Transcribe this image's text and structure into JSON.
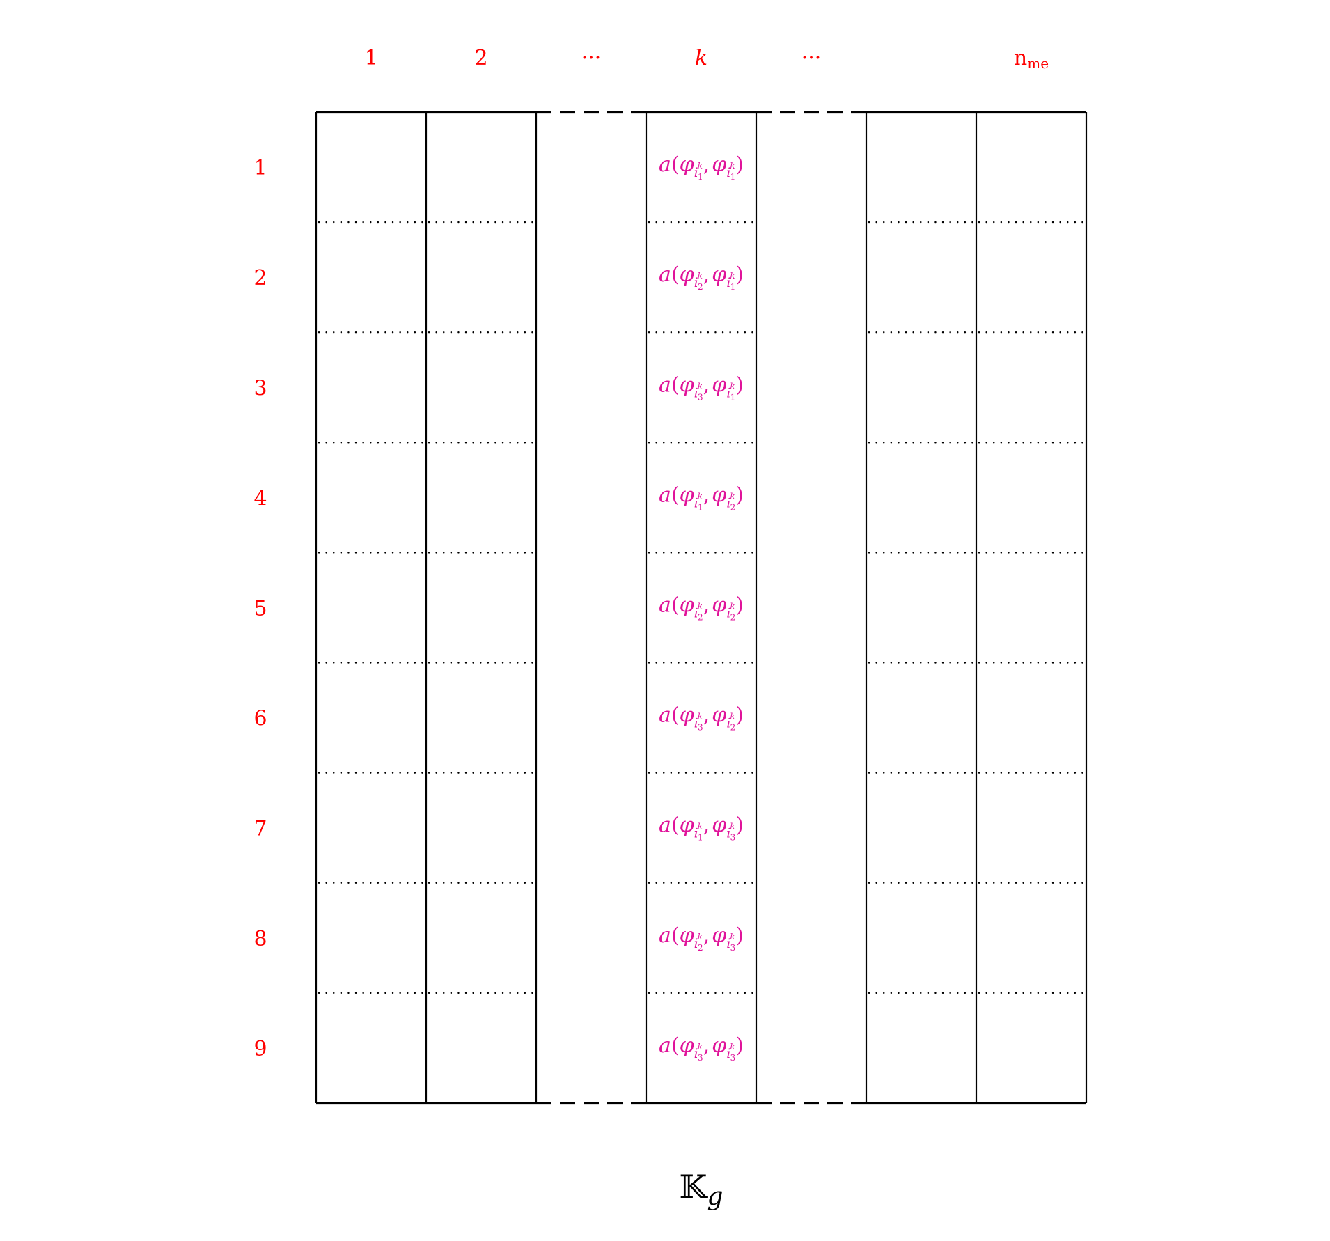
{
  "colors": {
    "label": "#ff0000",
    "entry": "#e0139a",
    "line": "#000000"
  },
  "column_headers": [
    {
      "text": "1",
      "italic": false
    },
    {
      "text": "2",
      "italic": false
    },
    {
      "text": "···",
      "italic": false
    },
    {
      "text": "k",
      "italic": true
    },
    {
      "text": "···",
      "italic": false
    },
    {
      "text": "n",
      "sub": "me",
      "italic": false
    }
  ],
  "row_labels": [
    "1",
    "2",
    "3",
    "4",
    "5",
    "6",
    "7",
    "8",
    "9"
  ],
  "entries": [
    {
      "a": "1",
      "b": "1"
    },
    {
      "a": "2",
      "b": "1"
    },
    {
      "a": "3",
      "b": "1"
    },
    {
      "a": "1",
      "b": "2"
    },
    {
      "a": "2",
      "b": "2"
    },
    {
      "a": "3",
      "b": "2"
    },
    {
      "a": "1",
      "b": "3"
    },
    {
      "a": "2",
      "b": "3"
    },
    {
      "a": "3",
      "b": "3"
    }
  ],
  "entry_symbols": {
    "func": "a",
    "phi": "φ",
    "i": "i",
    "k": "k"
  },
  "caption": {
    "symbol": "𝕂",
    "sub": "g"
  }
}
